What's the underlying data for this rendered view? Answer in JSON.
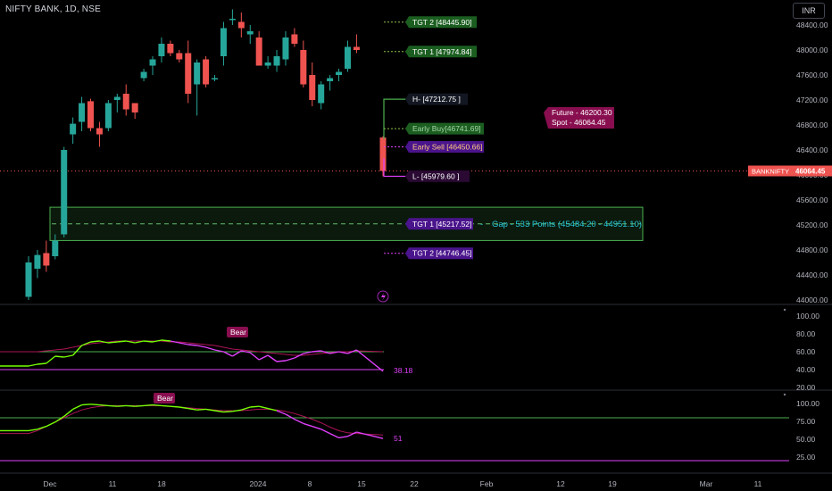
{
  "header": {
    "title": "NIFTY BANK, 1D, NSE",
    "currency_button": "INR"
  },
  "price_axis": [
    "48400.00",
    "48000.00",
    "47600.00",
    "47200.00",
    "46800.00",
    "46400.00",
    "46000.00",
    "45600.00",
    "45200.00",
    "44800.00",
    "44400.00",
    "44000.00"
  ],
  "price_tag": {
    "symbol": "BANKNIFTY",
    "price": "46064.45"
  },
  "annotations": {
    "tgt2_up": "TGT 2 [48445.90]",
    "tgt1_up": "TGT 1 [47974.84]",
    "high": "H- [47212.75 ]",
    "early_buy": "Early Buy[46741.69]",
    "early_sell": "Early Sell [46450.66]",
    "low": "L- [45979.60 ]",
    "tgt1_down": "TGT 1 [45217.52]",
    "tgt2_down": "TGT 2 [44746.45]",
    "future": "Future - 46200.30",
    "spot": "Spot - 46064.45",
    "gap": "Gap - 533 Points (45484.20 - 44951.10)"
  },
  "rsi_panel": {
    "axis": [
      "100.00",
      "80.00",
      "60.00",
      "40.00",
      "20.00"
    ],
    "value": "38.18",
    "badge": "Bear"
  },
  "second_panel": {
    "axis": [
      "100.00",
      "75.00",
      "50.00",
      "25.00"
    ],
    "value": "51",
    "badge": "Bear"
  },
  "time_axis": [
    "Dec",
    "11",
    "18",
    "2024",
    "8",
    "15",
    "22",
    "Feb",
    "12",
    "19",
    "Mar",
    "11"
  ],
  "colors": {
    "up": "#26a69a",
    "down": "#ef5350",
    "green_label": "#1b5e20",
    "purple_label": "#4a148c",
    "magenta": "#880e4f",
    "line_green": "#4caf50",
    "line_purple": "#e040fb"
  },
  "chart_data": {
    "type": "candlestick",
    "symbol": "NIFTY BANK",
    "timeframe": "1D",
    "candles": [
      {
        "o": 44050,
        "h": 44700,
        "l": 44000,
        "c": 44600
      },
      {
        "o": 44500,
        "h": 44800,
        "l": 44350,
        "c": 44720
      },
      {
        "o": 44750,
        "h": 44950,
        "l": 44450,
        "c": 44550
      },
      {
        "o": 44700,
        "h": 45050,
        "l": 44650,
        "c": 44950
      },
      {
        "o": 45050,
        "h": 46450,
        "l": 45000,
        "c": 46400
      },
      {
        "o": 46650,
        "h": 46920,
        "l": 46500,
        "c": 46820
      },
      {
        "o": 46850,
        "h": 47250,
        "l": 46700,
        "c": 47150
      },
      {
        "o": 47180,
        "h": 47220,
        "l": 46700,
        "c": 46750
      },
      {
        "o": 46750,
        "h": 46850,
        "l": 46450,
        "c": 46650
      },
      {
        "o": 46750,
        "h": 47200,
        "l": 46700,
        "c": 47150
      },
      {
        "o": 47200,
        "h": 47300,
        "l": 47000,
        "c": 47250
      },
      {
        "o": 47300,
        "h": 47450,
        "l": 46950,
        "c": 47050
      },
      {
        "o": 47150,
        "h": 47150,
        "l": 46900,
        "c": 47000
      },
      {
        "o": 47550,
        "h": 47700,
        "l": 47500,
        "c": 47650
      },
      {
        "o": 47750,
        "h": 47900,
        "l": 47600,
        "c": 47850
      },
      {
        "o": 47900,
        "h": 48200,
        "l": 47800,
        "c": 48100
      },
      {
        "o": 48100,
        "h": 48150,
        "l": 47900,
        "c": 47950
      },
      {
        "o": 47950,
        "h": 48000,
        "l": 47800,
        "c": 47850
      },
      {
        "o": 47950,
        "h": 48150,
        "l": 47150,
        "c": 47300
      },
      {
        "o": 47450,
        "h": 47850,
        "l": 46950,
        "c": 47800
      },
      {
        "o": 47850,
        "h": 47900,
        "l": 47400,
        "c": 47450
      },
      {
        "o": 47550,
        "h": 47600,
        "l": 47500,
        "c": 47550
      },
      {
        "o": 47900,
        "h": 48450,
        "l": 47750,
        "c": 48350
      },
      {
        "o": 48500,
        "h": 48650,
        "l": 48400,
        "c": 48500
      },
      {
        "o": 48450,
        "h": 48600,
        "l": 48200,
        "c": 48350
      },
      {
        "o": 48250,
        "h": 48400,
        "l": 48100,
        "c": 48300
      },
      {
        "o": 48200,
        "h": 48300,
        "l": 47750,
        "c": 47750
      },
      {
        "o": 47750,
        "h": 47900,
        "l": 47700,
        "c": 47800
      },
      {
        "o": 47750,
        "h": 48000,
        "l": 47650,
        "c": 47900
      },
      {
        "o": 47850,
        "h": 48300,
        "l": 47750,
        "c": 48200
      },
      {
        "o": 48250,
        "h": 48350,
        "l": 48050,
        "c": 48100
      },
      {
        "o": 48000,
        "h": 48150,
        "l": 47400,
        "c": 47450
      },
      {
        "o": 47600,
        "h": 47800,
        "l": 47100,
        "c": 47200
      },
      {
        "o": 47150,
        "h": 47500,
        "l": 47050,
        "c": 47450
      },
      {
        "o": 47500,
        "h": 47600,
        "l": 47350,
        "c": 47550
      },
      {
        "o": 47600,
        "h": 47700,
        "l": 47500,
        "c": 47650
      },
      {
        "o": 47700,
        "h": 48150,
        "l": 47650,
        "c": 48050
      },
      {
        "o": 48050,
        "h": 48250,
        "l": 47950,
        "c": 48000
      },
      {
        "o": 46600,
        "h": 46620,
        "l": 45980,
        "c": 46064.45
      }
    ],
    "rsi": [
      44,
      46,
      47,
      55,
      54,
      56,
      67,
      71,
      72,
      70,
      71,
      72,
      70,
      72,
      71,
      73,
      72,
      70,
      68,
      67,
      65,
      62,
      60,
      55,
      61,
      59,
      51,
      56,
      49,
      50,
      53,
      58,
      60,
      61,
      58,
      60,
      58,
      62,
      38.18
    ],
    "rsi_ma": [
      60,
      60,
      61,
      62,
      63,
      65,
      67,
      69,
      70,
      71,
      72,
      72,
      72,
      72,
      72,
      72,
      71,
      71,
      70,
      69,
      68,
      67,
      65,
      63,
      62,
      61,
      60,
      59,
      58,
      57,
      56,
      56,
      57,
      58,
      59,
      60,
      60,
      61,
      60
    ],
    "osc2": [
      62,
      64,
      68,
      74,
      82,
      92,
      98,
      99,
      98,
      97,
      96,
      97,
      96,
      97,
      98,
      97,
      96,
      95,
      93,
      91,
      92,
      90,
      88,
      89,
      91,
      95,
      96,
      93,
      90,
      85,
      78,
      72,
      68,
      64,
      58,
      52,
      54,
      60,
      51
    ],
    "osc2_ma": [
      58,
      62,
      68,
      74,
      80,
      86,
      91,
      94,
      96,
      97,
      97,
      97,
      97,
      97,
      97,
      97,
      96,
      95,
      94,
      93,
      92,
      91,
      90,
      90,
      90,
      91,
      92,
      92,
      91,
      89,
      86,
      82,
      78,
      73,
      67,
      62,
      59,
      58,
      56
    ]
  }
}
